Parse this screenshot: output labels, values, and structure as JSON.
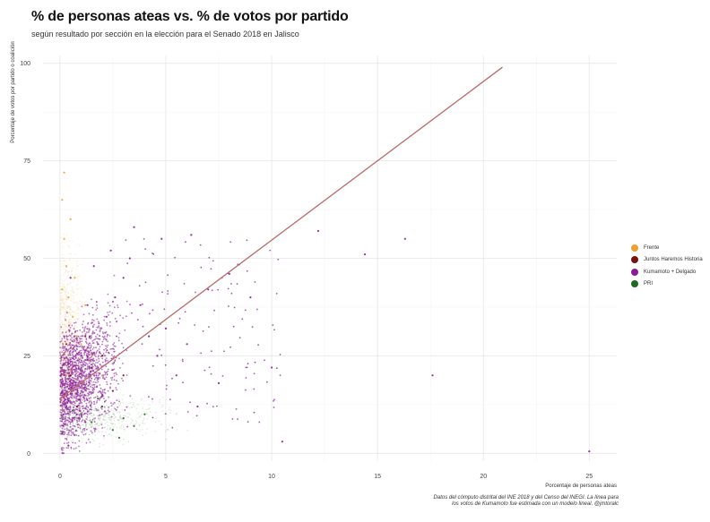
{
  "title": "% de personas ateas vs. % de votos por partido",
  "subtitle": "según resultado por sección en la elección para el Senado 2018 en Jalisco",
  "caption_line1": "Datos del cómputo distrital del INE 2018 y del Censo del INEGI. La línea para",
  "caption_line2": "los votos de Kumamoto fue estimada con un modelo lineal. @jmtoralc",
  "chart_data": {
    "type": "scatter",
    "xlabel": "Porcentaje de personas ateas",
    "ylabel": "Porcentaje de votos por partido o coalición",
    "xlim": [
      -0.8,
      26.3
    ],
    "ylim": [
      -2,
      102
    ],
    "xticks": [
      0,
      5,
      10,
      15,
      20,
      25
    ],
    "yticks": [
      0,
      25,
      50,
      75,
      100
    ],
    "grid": true,
    "legend_position": "right",
    "series": [
      {
        "name": "Frente",
        "color": "#f0a030"
      },
      {
        "name": "Juntos Haremos Historia",
        "color": "#7a1010"
      },
      {
        "name": "Kumamoto + Delgado",
        "color": "#8b1a9a"
      },
      {
        "name": "PRI",
        "color": "#1e6a1e"
      }
    ],
    "trend_line": {
      "series": "Kumamoto + Delgado",
      "x": [
        0,
        20.9
      ],
      "y": [
        14,
        99
      ],
      "color": "#b86a6a"
    },
    "sample_points": {
      "Kumamoto + Delgado": [
        [
          0.1,
          5
        ],
        [
          0.3,
          12
        ],
        [
          0.6,
          18
        ],
        [
          1.0,
          25
        ],
        [
          1.4,
          30
        ],
        [
          1.8,
          22
        ],
        [
          2.2,
          35
        ],
        [
          2.6,
          40
        ],
        [
          3.0,
          45
        ],
        [
          3.3,
          50
        ],
        [
          3.8,
          38
        ],
        [
          4.2,
          30
        ],
        [
          4.6,
          25
        ],
        [
          5.0,
          32
        ],
        [
          5.5,
          20
        ],
        [
          6.0,
          28
        ],
        [
          6.5,
          12
        ],
        [
          7.0,
          42
        ],
        [
          7.5,
          18
        ],
        [
          8.0,
          46
        ],
        [
          9.0,
          40
        ],
        [
          10.0,
          22
        ],
        [
          10.5,
          3
        ],
        [
          12.2,
          57
        ],
        [
          14.4,
          51
        ],
        [
          16.3,
          55
        ],
        [
          17.6,
          20
        ],
        [
          25.0,
          0.5
        ],
        [
          0.5,
          45
        ],
        [
          1.2,
          8
        ],
        [
          2.0,
          15
        ],
        [
          3.5,
          58
        ],
        [
          4.8,
          55
        ],
        [
          6.2,
          56
        ],
        [
          0.2,
          30
        ],
        [
          1.6,
          48
        ],
        [
          2.4,
          52
        ],
        [
          0.4,
          2
        ],
        [
          0.8,
          10
        ],
        [
          1.3,
          38
        ]
      ],
      "Frente": [
        [
          0.1,
          65
        ],
        [
          0.2,
          55
        ],
        [
          0.3,
          48
        ],
        [
          0.4,
          40
        ],
        [
          0.6,
          35
        ],
        [
          0.8,
          30
        ],
        [
          1.0,
          28
        ],
        [
          0.2,
          72
        ],
        [
          0.5,
          60
        ],
        [
          1.5,
          25
        ],
        [
          2.0,
          20
        ],
        [
          0.3,
          20
        ],
        [
          0.7,
          45
        ],
        [
          1.2,
          38
        ],
        [
          0.1,
          42
        ]
      ],
      "Juntos Haremos Historia": [
        [
          0.2,
          15
        ],
        [
          0.5,
          20
        ],
        [
          1.0,
          18
        ],
        [
          1.5,
          22
        ],
        [
          2.0,
          25
        ],
        [
          3.0,
          20
        ],
        [
          0.3,
          28
        ],
        [
          0.8,
          12
        ],
        [
          1.2,
          30
        ],
        [
          2.5,
          16
        ]
      ],
      "PRI": [
        [
          1.0,
          10
        ],
        [
          1.5,
          8
        ],
        [
          2.0,
          12
        ],
        [
          2.5,
          6
        ],
        [
          3.0,
          9
        ],
        [
          3.5,
          7
        ],
        [
          4.0,
          10
        ],
        [
          1.8,
          14
        ],
        [
          2.8,
          4
        ],
        [
          0.6,
          11
        ]
      ]
    }
  }
}
